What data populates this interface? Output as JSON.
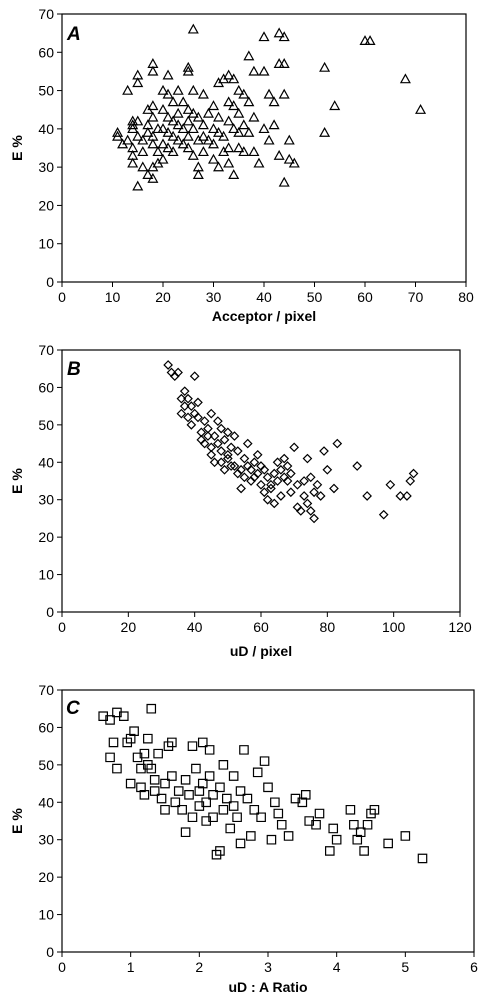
{
  "chart_data": [
    {
      "type": "scatter",
      "panel": "A",
      "marker": "triangle",
      "xlabel": "Acceptor  / pixel",
      "ylabel": "E %",
      "xlim": [
        0,
        80
      ],
      "ylim": [
        0,
        70
      ],
      "xticks": [
        0,
        10,
        20,
        30,
        40,
        50,
        60,
        70,
        80
      ],
      "yticks": [
        0,
        10,
        20,
        30,
        40,
        50,
        60,
        70
      ],
      "grid": false,
      "points": [
        [
          11,
          39
        ],
        [
          11,
          38
        ],
        [
          12,
          36
        ],
        [
          13,
          37
        ],
        [
          13,
          50
        ],
        [
          14,
          41
        ],
        [
          14,
          42
        ],
        [
          14,
          40
        ],
        [
          14,
          35
        ],
        [
          14,
          33
        ],
        [
          14,
          31
        ],
        [
          15,
          52
        ],
        [
          15,
          54
        ],
        [
          15,
          42
        ],
        [
          15,
          38
        ],
        [
          15,
          25
        ],
        [
          16,
          34
        ],
        [
          16,
          37
        ],
        [
          16,
          30
        ],
        [
          17,
          41
        ],
        [
          17,
          39
        ],
        [
          17,
          28
        ],
        [
          17,
          45
        ],
        [
          18,
          57
        ],
        [
          18,
          55
        ],
        [
          18,
          46
        ],
        [
          18,
          43
        ],
        [
          18,
          38
        ],
        [
          18,
          36
        ],
        [
          18,
          30
        ],
        [
          18,
          27
        ],
        [
          19,
          40
        ],
        [
          19,
          34
        ],
        [
          19,
          31
        ],
        [
          20,
          50
        ],
        [
          20,
          45
        ],
        [
          20,
          40
        ],
        [
          20,
          36
        ],
        [
          20,
          32
        ],
        [
          21,
          54
        ],
        [
          21,
          49
        ],
        [
          21,
          43
        ],
        [
          21,
          39
        ],
        [
          21,
          35
        ],
        [
          22,
          47
        ],
        [
          22,
          42
        ],
        [
          22,
          38
        ],
        [
          22,
          34
        ],
        [
          23,
          50
        ],
        [
          23,
          44
        ],
        [
          23,
          41
        ],
        [
          23,
          37
        ],
        [
          24,
          47
        ],
        [
          24,
          40
        ],
        [
          24,
          36
        ],
        [
          25,
          56
        ],
        [
          25,
          55
        ],
        [
          25,
          45
        ],
        [
          25,
          42
        ],
        [
          25,
          38
        ],
        [
          25,
          35
        ],
        [
          26,
          66
        ],
        [
          26,
          50
        ],
        [
          26,
          44
        ],
        [
          26,
          40
        ],
        [
          26,
          33
        ],
        [
          27,
          43
        ],
        [
          27,
          37
        ],
        [
          27,
          30
        ],
        [
          27,
          28
        ],
        [
          28,
          49
        ],
        [
          28,
          41
        ],
        [
          28,
          38
        ],
        [
          28,
          34
        ],
        [
          29,
          44
        ],
        [
          29,
          37
        ],
        [
          30,
          46
        ],
        [
          30,
          40
        ],
        [
          30,
          36
        ],
        [
          30,
          32
        ],
        [
          31,
          52
        ],
        [
          31,
          43
        ],
        [
          31,
          39
        ],
        [
          31,
          30
        ],
        [
          32,
          53
        ],
        [
          32,
          38
        ],
        [
          32,
          34
        ],
        [
          33,
          54
        ],
        [
          33,
          47
        ],
        [
          33,
          42
        ],
        [
          33,
          35
        ],
        [
          33,
          31
        ],
        [
          34,
          53
        ],
        [
          34,
          46
        ],
        [
          34,
          40
        ],
        [
          34,
          28
        ],
        [
          35,
          50
        ],
        [
          35,
          44
        ],
        [
          35,
          39
        ],
        [
          35,
          35
        ],
        [
          36,
          49
        ],
        [
          36,
          41
        ],
        [
          36,
          34
        ],
        [
          37,
          59
        ],
        [
          37,
          47
        ],
        [
          37,
          39
        ],
        [
          38,
          55
        ],
        [
          38,
          43
        ],
        [
          38,
          34
        ],
        [
          39,
          31
        ],
        [
          40,
          64
        ],
        [
          40,
          55
        ],
        [
          40,
          40
        ],
        [
          41,
          49
        ],
        [
          41,
          37
        ],
        [
          42,
          47
        ],
        [
          42,
          41
        ],
        [
          43,
          65
        ],
        [
          43,
          57
        ],
        [
          43,
          33
        ],
        [
          44,
          57
        ],
        [
          44,
          64
        ],
        [
          44,
          49
        ],
        [
          44,
          26
        ],
        [
          45,
          37
        ],
        [
          45,
          32
        ],
        [
          46,
          31
        ],
        [
          52,
          56
        ],
        [
          52,
          39
        ],
        [
          54,
          46
        ],
        [
          60,
          63
        ],
        [
          61,
          63
        ],
        [
          68,
          53
        ],
        [
          71,
          45
        ]
      ]
    },
    {
      "type": "scatter",
      "panel": "B",
      "marker": "diamond",
      "xlabel": "uD / pixel",
      "ylabel": "E %",
      "xlim": [
        0,
        120
      ],
      "ylim": [
        0,
        70
      ],
      "xticks": [
        0,
        20,
        40,
        60,
        80,
        100,
        120
      ],
      "yticks": [
        0,
        10,
        20,
        30,
        40,
        50,
        60,
        70
      ],
      "grid": false,
      "points": [
        [
          32,
          66
        ],
        [
          33,
          64
        ],
        [
          34,
          63
        ],
        [
          35,
          64
        ],
        [
          36,
          57
        ],
        [
          36,
          53
        ],
        [
          37,
          59
        ],
        [
          37,
          55
        ],
        [
          38,
          57
        ],
        [
          38,
          52
        ],
        [
          39,
          50
        ],
        [
          39,
          55
        ],
        [
          40,
          63
        ],
        [
          40,
          53
        ],
        [
          41,
          52
        ],
        [
          41,
          56
        ],
        [
          42,
          46
        ],
        [
          42,
          48
        ],
        [
          43,
          51
        ],
        [
          43,
          45
        ],
        [
          44,
          47
        ],
        [
          44,
          49
        ],
        [
          45,
          44
        ],
        [
          45,
          42
        ],
        [
          45,
          53
        ],
        [
          46,
          47
        ],
        [
          46,
          40
        ],
        [
          47,
          45
        ],
        [
          47,
          51
        ],
        [
          48,
          40
        ],
        [
          48,
          43
        ],
        [
          48,
          49
        ],
        [
          49,
          38
        ],
        [
          49,
          46
        ],
        [
          50,
          41
        ],
        [
          50,
          42
        ],
        [
          50,
          48
        ],
        [
          51,
          44
        ],
        [
          51,
          39
        ],
        [
          52,
          39
        ],
        [
          52,
          47
        ],
        [
          53,
          43
        ],
        [
          53,
          37
        ],
        [
          54,
          38
        ],
        [
          54,
          33
        ],
        [
          55,
          41
        ],
        [
          55,
          36
        ],
        [
          56,
          39
        ],
        [
          56,
          45
        ],
        [
          57,
          38
        ],
        [
          57,
          35
        ],
        [
          58,
          40
        ],
        [
          58,
          36
        ],
        [
          59,
          42
        ],
        [
          59,
          37
        ],
        [
          60,
          39
        ],
        [
          60,
          34
        ],
        [
          61,
          38
        ],
        [
          61,
          32
        ],
        [
          62,
          36
        ],
        [
          62,
          30
        ],
        [
          63,
          34
        ],
        [
          63,
          33
        ],
        [
          64,
          29
        ],
        [
          64,
          37
        ],
        [
          65,
          40
        ],
        [
          65,
          35
        ],
        [
          66,
          38
        ],
        [
          66,
          31
        ],
        [
          67,
          41
        ],
        [
          67,
          36
        ],
        [
          68,
          35
        ],
        [
          68,
          39
        ],
        [
          69,
          37
        ],
        [
          69,
          32
        ],
        [
          70,
          44
        ],
        [
          71,
          34
        ],
        [
          71,
          28
        ],
        [
          72,
          27
        ],
        [
          73,
          31
        ],
        [
          73,
          35
        ],
        [
          74,
          41
        ],
        [
          74,
          29
        ],
        [
          75,
          36
        ],
        [
          75,
          27
        ],
        [
          76,
          32
        ],
        [
          76,
          25
        ],
        [
          77,
          34
        ],
        [
          78,
          31
        ],
        [
          79,
          43
        ],
        [
          80,
          38
        ],
        [
          82,
          33
        ],
        [
          83,
          45
        ],
        [
          89,
          39
        ],
        [
          92,
          31
        ],
        [
          97,
          26
        ],
        [
          99,
          34
        ],
        [
          102,
          31
        ],
        [
          104,
          31
        ],
        [
          105,
          35
        ],
        [
          106,
          37
        ]
      ]
    },
    {
      "type": "scatter",
      "panel": "C",
      "marker": "square",
      "xlabel": "uD : A Ratio",
      "ylabel": "E %",
      "xlim": [
        0,
        6
      ],
      "ylim": [
        0,
        70
      ],
      "xticks": [
        0,
        1,
        2,
        3,
        4,
        5,
        6
      ],
      "yticks": [
        0,
        10,
        20,
        30,
        40,
        50,
        60,
        70
      ],
      "grid": false,
      "points": [
        [
          0.6,
          63
        ],
        [
          0.7,
          62
        ],
        [
          0.7,
          52
        ],
        [
          0.75,
          56
        ],
        [
          0.8,
          64
        ],
        [
          0.8,
          49
        ],
        [
          0.9,
          63
        ],
        [
          0.95,
          56
        ],
        [
          1.0,
          57
        ],
        [
          1.0,
          45
        ],
        [
          1.05,
          59
        ],
        [
          1.1,
          52
        ],
        [
          1.15,
          49
        ],
        [
          1.15,
          44
        ],
        [
          1.2,
          53
        ],
        [
          1.2,
          42
        ],
        [
          1.25,
          57
        ],
        [
          1.25,
          50
        ],
        [
          1.3,
          65
        ],
        [
          1.3,
          49
        ],
        [
          1.35,
          46
        ],
        [
          1.35,
          43
        ],
        [
          1.4,
          53
        ],
        [
          1.45,
          41
        ],
        [
          1.5,
          45
        ],
        [
          1.5,
          38
        ],
        [
          1.55,
          55
        ],
        [
          1.6,
          56
        ],
        [
          1.6,
          47
        ],
        [
          1.65,
          40
        ],
        [
          1.7,
          43
        ],
        [
          1.75,
          38
        ],
        [
          1.8,
          46
        ],
        [
          1.8,
          32
        ],
        [
          1.85,
          42
        ],
        [
          1.9,
          36
        ],
        [
          1.9,
          55
        ],
        [
          1.95,
          49
        ],
        [
          2.0,
          43
        ],
        [
          2.0,
          39
        ],
        [
          2.05,
          56
        ],
        [
          2.05,
          45
        ],
        [
          2.1,
          40
        ],
        [
          2.1,
          35
        ],
        [
          2.15,
          54
        ],
        [
          2.15,
          47
        ],
        [
          2.2,
          42
        ],
        [
          2.2,
          36
        ],
        [
          2.25,
          26
        ],
        [
          2.3,
          27
        ],
        [
          2.3,
          44
        ],
        [
          2.35,
          38
        ],
        [
          2.35,
          50
        ],
        [
          2.4,
          41
        ],
        [
          2.45,
          33
        ],
        [
          2.5,
          47
        ],
        [
          2.5,
          39
        ],
        [
          2.55,
          36
        ],
        [
          2.6,
          43
        ],
        [
          2.6,
          29
        ],
        [
          2.65,
          54
        ],
        [
          2.7,
          41
        ],
        [
          2.75,
          31
        ],
        [
          2.8,
          38
        ],
        [
          2.85,
          48
        ],
        [
          2.9,
          36
        ],
        [
          2.95,
          51
        ],
        [
          3.0,
          44
        ],
        [
          3.05,
          30
        ],
        [
          3.1,
          40
        ],
        [
          3.15,
          37
        ],
        [
          3.2,
          34
        ],
        [
          3.3,
          31
        ],
        [
          3.4,
          41
        ],
        [
          3.5,
          40
        ],
        [
          3.55,
          42
        ],
        [
          3.6,
          35
        ],
        [
          3.7,
          34
        ],
        [
          3.75,
          37
        ],
        [
          3.9,
          27
        ],
        [
          3.95,
          33
        ],
        [
          4.0,
          30
        ],
        [
          4.2,
          38
        ],
        [
          4.25,
          34
        ],
        [
          4.3,
          30
        ],
        [
          4.35,
          32
        ],
        [
          4.4,
          27
        ],
        [
          4.45,
          34
        ],
        [
          4.5,
          37
        ],
        [
          4.55,
          38
        ],
        [
          4.75,
          29
        ],
        [
          5.0,
          31
        ],
        [
          5.25,
          25
        ]
      ]
    }
  ]
}
